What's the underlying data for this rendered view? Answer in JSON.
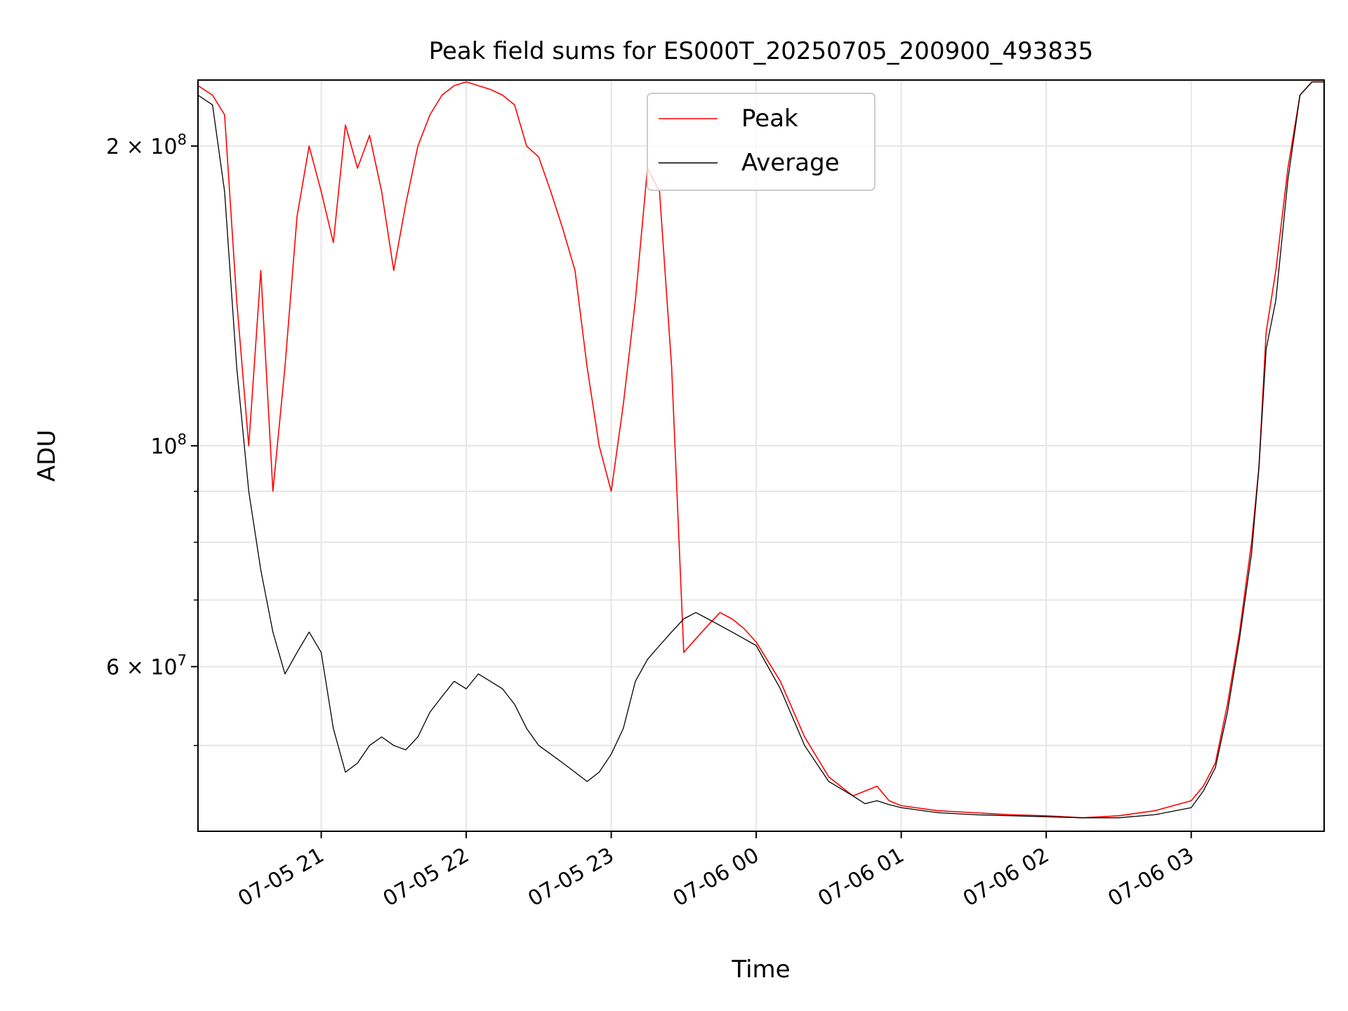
{
  "chart_data": {
    "type": "line",
    "title": "Peak field sums for ES000T_20250705_200900_493835",
    "xlabel": "Time",
    "ylabel": "ADU",
    "yscale": "log",
    "grid": true,
    "legend_position": "upper-center",
    "xlim": [
      "2025-07-05 20:09",
      "2025-07-06 03:55"
    ],
    "ylim": [
      41000000,
      233000000
    ],
    "x_ticks": [
      {
        "value": "2025-07-05 21:00",
        "label": "07-05 21"
      },
      {
        "value": "2025-07-05 22:00",
        "label": "07-05 22"
      },
      {
        "value": "2025-07-05 23:00",
        "label": "07-05 23"
      },
      {
        "value": "2025-07-06 00:00",
        "label": "07-06 00"
      },
      {
        "value": "2025-07-06 01:00",
        "label": "07-06 01"
      },
      {
        "value": "2025-07-06 02:00",
        "label": "07-06 02"
      },
      {
        "value": "2025-07-06 03:00",
        "label": "07-06 03"
      }
    ],
    "y_ticks": [
      {
        "value": 60000000,
        "base": "6",
        "times": "×",
        "exponent_base": "10",
        "exponent": "7"
      },
      {
        "value": 100000000,
        "base": "",
        "times": "",
        "exponent_base": "10",
        "exponent": "8"
      },
      {
        "value": 200000000,
        "base": "2",
        "times": "×",
        "exponent_base": "10",
        "exponent": "8"
      }
    ],
    "y_minor_ticks": [
      50000000,
      70000000,
      80000000,
      90000000
    ],
    "series": [
      {
        "name": "Peak",
        "color": "#ff0000",
        "x": [
          "2025-07-05 20:09",
          "2025-07-05 20:15",
          "2025-07-05 20:20",
          "2025-07-05 20:25",
          "2025-07-05 20:30",
          "2025-07-05 20:35",
          "2025-07-05 20:40",
          "2025-07-05 20:45",
          "2025-07-05 20:50",
          "2025-07-05 20:55",
          "2025-07-05 21:00",
          "2025-07-05 21:05",
          "2025-07-05 21:10",
          "2025-07-05 21:15",
          "2025-07-05 21:20",
          "2025-07-05 21:25",
          "2025-07-05 21:30",
          "2025-07-05 21:35",
          "2025-07-05 21:40",
          "2025-07-05 21:45",
          "2025-07-05 21:50",
          "2025-07-05 21:55",
          "2025-07-05 22:00",
          "2025-07-05 22:05",
          "2025-07-05 22:10",
          "2025-07-05 22:15",
          "2025-07-05 22:20",
          "2025-07-05 22:25",
          "2025-07-05 22:30",
          "2025-07-05 22:35",
          "2025-07-05 22:40",
          "2025-07-05 22:45",
          "2025-07-05 22:50",
          "2025-07-05 22:55",
          "2025-07-05 23:00",
          "2025-07-05 23:05",
          "2025-07-05 23:10",
          "2025-07-05 23:15",
          "2025-07-05 23:20",
          "2025-07-05 23:25",
          "2025-07-05 23:30",
          "2025-07-05 23:35",
          "2025-07-05 23:40",
          "2025-07-05 23:45",
          "2025-07-05 23:50",
          "2025-07-05 23:55",
          "2025-07-06 00:00",
          "2025-07-06 00:10",
          "2025-07-06 00:20",
          "2025-07-06 00:30",
          "2025-07-06 00:40",
          "2025-07-06 00:45",
          "2025-07-06 00:50",
          "2025-07-06 00:55",
          "2025-07-06 01:00",
          "2025-07-06 01:15",
          "2025-07-06 01:30",
          "2025-07-06 01:45",
          "2025-07-06 02:00",
          "2025-07-06 02:15",
          "2025-07-06 02:30",
          "2025-07-06 02:45",
          "2025-07-06 03:00",
          "2025-07-06 03:05",
          "2025-07-06 03:10",
          "2025-07-06 03:15",
          "2025-07-06 03:20",
          "2025-07-06 03:25",
          "2025-07-06 03:28",
          "2025-07-06 03:31",
          "2025-07-06 03:35",
          "2025-07-06 03:40",
          "2025-07-06 03:45",
          "2025-07-06 03:50",
          "2025-07-06 03:55"
        ],
        "y": [
          230000000,
          225000000,
          215000000,
          140000000,
          100000000,
          150000000,
          90000000,
          120000000,
          170000000,
          200000000,
          180000000,
          160000000,
          210000000,
          190000000,
          205000000,
          180000000,
          150000000,
          175000000,
          200000000,
          215000000,
          225000000,
          230000000,
          232000000,
          230000000,
          228000000,
          225000000,
          220000000,
          200000000,
          195000000,
          180000000,
          165000000,
          150000000,
          120000000,
          100000000,
          90000000,
          110000000,
          140000000,
          190000000,
          180000000,
          120000000,
          62000000,
          64000000,
          66000000,
          68000000,
          67000000,
          65500000,
          63500000,
          58000000,
          51000000,
          46500000,
          44500000,
          45000000,
          45500000,
          44000000,
          43500000,
          43000000,
          42800000,
          42600000,
          42500000,
          42300000,
          42500000,
          43000000,
          44000000,
          45500000,
          48000000,
          55000000,
          65000000,
          80000000,
          95000000,
          130000000,
          150000000,
          190000000,
          225000000,
          232000000,
          232000000
        ]
      },
      {
        "name": "Average",
        "color": "#000000",
        "x": [
          "2025-07-05 20:09",
          "2025-07-05 20:15",
          "2025-07-05 20:20",
          "2025-07-05 20:25",
          "2025-07-05 20:30",
          "2025-07-05 20:35",
          "2025-07-05 20:40",
          "2025-07-05 20:45",
          "2025-07-05 20:50",
          "2025-07-05 20:55",
          "2025-07-05 21:00",
          "2025-07-05 21:05",
          "2025-07-05 21:10",
          "2025-07-05 21:15",
          "2025-07-05 21:20",
          "2025-07-05 21:25",
          "2025-07-05 21:30",
          "2025-07-05 21:35",
          "2025-07-05 21:40",
          "2025-07-05 21:45",
          "2025-07-05 21:50",
          "2025-07-05 21:55",
          "2025-07-05 22:00",
          "2025-07-05 22:05",
          "2025-07-05 22:10",
          "2025-07-05 22:15",
          "2025-07-05 22:20",
          "2025-07-05 22:25",
          "2025-07-05 22:30",
          "2025-07-05 22:35",
          "2025-07-05 22:40",
          "2025-07-05 22:45",
          "2025-07-05 22:50",
          "2025-07-05 22:55",
          "2025-07-05 23:00",
          "2025-07-05 23:05",
          "2025-07-05 23:10",
          "2025-07-05 23:15",
          "2025-07-05 23:20",
          "2025-07-05 23:25",
          "2025-07-05 23:30",
          "2025-07-05 23:35",
          "2025-07-05 23:40",
          "2025-07-05 23:45",
          "2025-07-05 23:50",
          "2025-07-05 23:55",
          "2025-07-06 00:00",
          "2025-07-06 00:10",
          "2025-07-06 00:20",
          "2025-07-06 00:30",
          "2025-07-06 00:40",
          "2025-07-06 00:45",
          "2025-07-06 00:50",
          "2025-07-06 00:55",
          "2025-07-06 01:00",
          "2025-07-06 01:15",
          "2025-07-06 01:30",
          "2025-07-06 01:45",
          "2025-07-06 02:00",
          "2025-07-06 02:15",
          "2025-07-06 02:30",
          "2025-07-06 02:45",
          "2025-07-06 03:00",
          "2025-07-06 03:05",
          "2025-07-06 03:10",
          "2025-07-06 03:15",
          "2025-07-06 03:20",
          "2025-07-06 03:25",
          "2025-07-06 03:28",
          "2025-07-06 03:31",
          "2025-07-06 03:35",
          "2025-07-06 03:40",
          "2025-07-06 03:45",
          "2025-07-06 03:50",
          "2025-07-06 03:55"
        ],
        "y": [
          225000000,
          220000000,
          180000000,
          120000000,
          90000000,
          75000000,
          65000000,
          59000000,
          62000000,
          65000000,
          62000000,
          52000000,
          47000000,
          48000000,
          50000000,
          51000000,
          50000000,
          49500000,
          51000000,
          54000000,
          56000000,
          58000000,
          57000000,
          59000000,
          58000000,
          57000000,
          55000000,
          52000000,
          50000000,
          49000000,
          48000000,
          47000000,
          46000000,
          47000000,
          49000000,
          52000000,
          58000000,
          61000000,
          63000000,
          65000000,
          67000000,
          68000000,
          67000000,
          66000000,
          65000000,
          64000000,
          63000000,
          57000000,
          50000000,
          46000000,
          44500000,
          43700000,
          44000000,
          43600000,
          43300000,
          42800000,
          42600000,
          42500000,
          42400000,
          42300000,
          42300000,
          42600000,
          43300000,
          45000000,
          47500000,
          54000000,
          64000000,
          78000000,
          95000000,
          125000000,
          140000000,
          185000000,
          225000000,
          232000000,
          232000000
        ]
      }
    ]
  }
}
